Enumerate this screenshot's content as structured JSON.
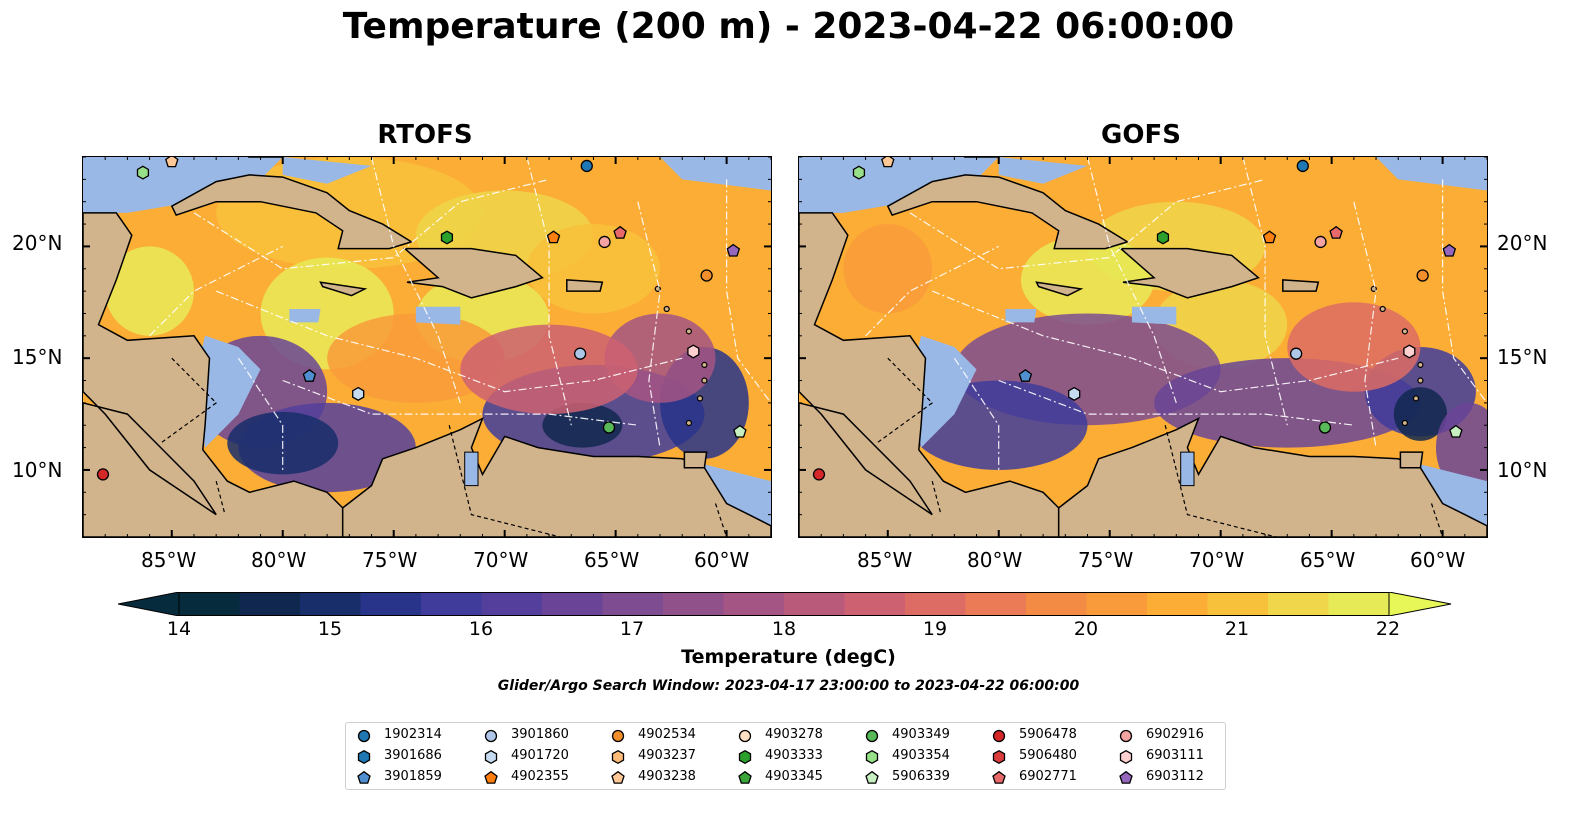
{
  "title": "Temperature (200 m) - 2023-04-22 06:00:00",
  "maps": [
    {
      "name": "RTOFS"
    },
    {
      "name": "GOFS"
    }
  ],
  "axes": {
    "lon_labels": [
      "85°W",
      "80°W",
      "75°W",
      "70°W",
      "65°W",
      "60°W"
    ],
    "lat_labels": [
      "20°N",
      "15°N",
      "10°N"
    ]
  },
  "colorbar": {
    "ticks": [
      "14",
      "15",
      "16",
      "17",
      "18",
      "19",
      "20",
      "21",
      "22"
    ],
    "label": "Temperature (degC)",
    "colors": [
      "#062b3d",
      "#10284f",
      "#172e6b",
      "#27348a",
      "#3f3c9c",
      "#553f9c",
      "#6a4597",
      "#7d4c91",
      "#90508a",
      "#a45583",
      "#b95a7b",
      "#cd6171",
      "#dd6c64",
      "#ea7b56",
      "#f38b45",
      "#f99b3a",
      "#fbad36",
      "#f8c13b",
      "#efd64a",
      "#e7ea57"
    ],
    "under_color": "#062b3d",
    "over_color": "#e7f757"
  },
  "search_window": "Glider/Argo Search Window: 2023-04-17 23:00:00 to 2023-04-22 06:00:00",
  "legend": [
    {
      "label": "1902314",
      "marker": "circle",
      "color": "#1f77b4"
    },
    {
      "label": "3901686",
      "marker": "hexagon",
      "color": "#1f77b4"
    },
    {
      "label": "3901859",
      "marker": "pentagon",
      "color": "#4f8fd0"
    },
    {
      "label": "3901860",
      "marker": "circle",
      "color": "#aec7e8"
    },
    {
      "label": "4901720",
      "marker": "hexagon",
      "color": "#c6dbef"
    },
    {
      "label": "4902355",
      "marker": "pentagon",
      "color": "#ff7f0e"
    },
    {
      "label": "4902534",
      "marker": "circle",
      "color": "#f28e2b"
    },
    {
      "label": "4903237",
      "marker": "hexagon",
      "color": "#ffbb78"
    },
    {
      "label": "4903238",
      "marker": "pentagon",
      "color": "#ffc896"
    },
    {
      "label": "4903278",
      "marker": "circle",
      "color": "#ffe0c4"
    },
    {
      "label": "4903333",
      "marker": "hexagon",
      "color": "#2ca02c"
    },
    {
      "label": "4903345",
      "marker": "pentagon",
      "color": "#3aa63a"
    },
    {
      "label": "4903349",
      "marker": "circle",
      "color": "#59b959"
    },
    {
      "label": "4903354",
      "marker": "hexagon",
      "color": "#98df8a"
    },
    {
      "label": "5906339",
      "marker": "pentagon",
      "color": "#c7f0c0"
    },
    {
      "label": "5906478",
      "marker": "circle",
      "color": "#d62728"
    },
    {
      "label": "5906480",
      "marker": "hexagon",
      "color": "#dd3c3c"
    },
    {
      "label": "6902771",
      "marker": "pentagon",
      "color": "#e8696a"
    },
    {
      "label": "6902916",
      "marker": "circle",
      "color": "#f4a3a3"
    },
    {
      "label": "6903111",
      "marker": "hexagon",
      "color": "#ffd0d0"
    },
    {
      "label": "6903112",
      "marker": "pentagon",
      "color": "#9467bd"
    }
  ],
  "colors": {
    "land": "#d2b48c",
    "shelf": "#9ab8e6",
    "cold_pacific": "#062b3d"
  }
}
